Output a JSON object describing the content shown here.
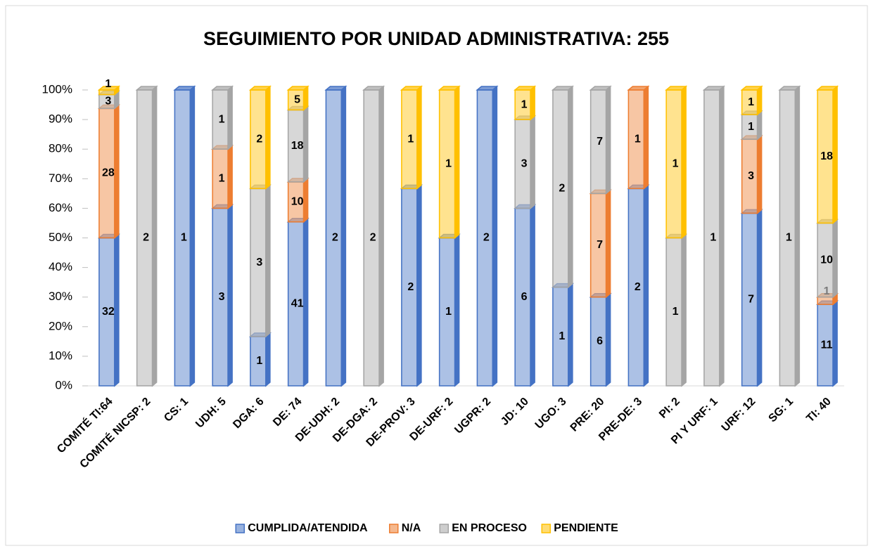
{
  "chart_data": {
    "type": "bar",
    "stacking": "percent",
    "title": "SEGUIMIENTO POR UNIDAD ADMINISTRATIVA: 255",
    "categories": [
      "COMITÉ TI:64",
      "COMITÉ NICSP: 2",
      "CS: 1",
      "UDH: 5",
      "DGA: 6",
      "DE: 74",
      "DE-UDH: 2",
      "DE-DGA: 2",
      "DE-PROV: 3",
      "DE-URF: 2",
      "UGPR: 2",
      "JD: 10",
      "UGO: 3",
      "PRE: 20",
      "PRE-DE: 3",
      "PI: 2",
      "PI Y URF: 1",
      "URF: 12",
      "SG: 1",
      "TI: 40"
    ],
    "series": [
      {
        "name": "CUMPLIDA/ATENDIDA",
        "color": "#4472c4",
        "values": [
          32,
          null,
          1,
          3,
          1,
          41,
          2,
          null,
          2,
          1,
          2,
          6,
          1,
          6,
          2,
          null,
          null,
          7,
          null,
          11
        ]
      },
      {
        "name": "N/A",
        "color": "#ed7d31",
        "values": [
          28,
          null,
          null,
          1,
          null,
          10,
          null,
          null,
          null,
          null,
          null,
          null,
          null,
          7,
          1,
          null,
          null,
          3,
          null,
          1
        ]
      },
      {
        "name": "EN PROCESO",
        "color": "#a5a5a5",
        "values": [
          3,
          2,
          null,
          1,
          3,
          18,
          null,
          2,
          null,
          null,
          null,
          3,
          2,
          7,
          null,
          1,
          1,
          1,
          1,
          10
        ]
      },
      {
        "name": "PENDIENTE",
        "color": "#ffc000",
        "values": [
          1,
          null,
          null,
          null,
          2,
          5,
          null,
          null,
          1,
          1,
          null,
          1,
          null,
          null,
          null,
          1,
          null,
          1,
          null,
          18
        ]
      }
    ],
    "ylim": [
      0,
      100
    ],
    "yticks": [
      {
        "value": 0,
        "label": "0%"
      },
      {
        "value": 10,
        "label": "10%"
      },
      {
        "value": 20,
        "label": "20%"
      },
      {
        "value": 30,
        "label": "30%"
      },
      {
        "value": 40,
        "label": "40%"
      },
      {
        "value": 50,
        "label": "50%"
      },
      {
        "value": 60,
        "label": "60%"
      },
      {
        "value": 70,
        "label": "70%"
      },
      {
        "value": 80,
        "label": "80%"
      },
      {
        "value": 90,
        "label": "90%"
      },
      {
        "value": 100,
        "label": "100%"
      }
    ],
    "legend": "bottom"
  }
}
